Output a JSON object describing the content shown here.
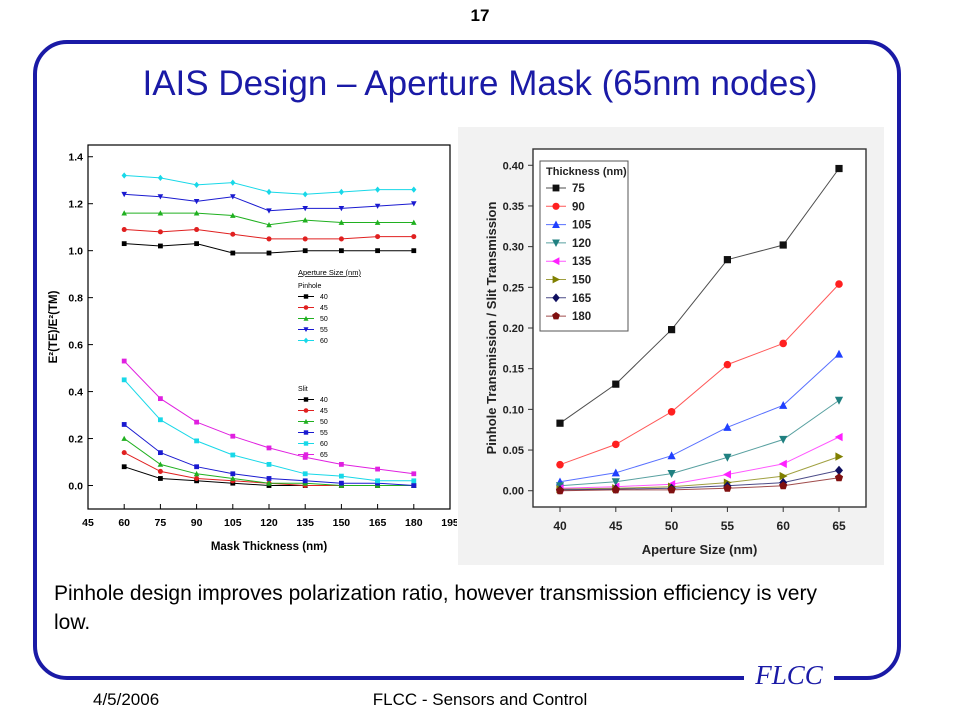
{
  "slide": {
    "number": "17",
    "title": "IAIS Design – Aperture Mask (65nm nodes)",
    "body": "Pinhole design improves polarization ratio, however transmission efficiency is very low.",
    "footer_date": "4/5/2006",
    "footer_center": "FLCC - Sensors and Control",
    "logo": "FLCC",
    "accent_color": "#1a1aa6"
  },
  "chart_data": [
    {
      "type": "line",
      "xlabel": "Mask Thickness (nm)",
      "ylabel": "E²(TE)/E²(TM)",
      "x": [
        60,
        75,
        90,
        105,
        120,
        135,
        150,
        165,
        180
      ],
      "xticks": [
        "45",
        "60",
        "75",
        "90",
        "105",
        "120",
        "135",
        "150",
        "165",
        "180",
        "195"
      ],
      "yticks": [
        "0.0",
        "0.2",
        "0.4",
        "0.6",
        "0.8",
        "1.0",
        "1.2",
        "1.4"
      ],
      "xlim": [
        45,
        195
      ],
      "ylim": [
        -0.1,
        1.45
      ],
      "legend_title": "Aperture Size (nm)",
      "legend_groups": [
        {
          "label": "Pinhole",
          "entries": [
            "40",
            "45",
            "50",
            "55",
            "60"
          ]
        },
        {
          "label": "Slit",
          "entries": [
            "40",
            "45",
            "50",
            "55",
            "60",
            "65"
          ]
        }
      ],
      "legend_position": "center-right",
      "series": [
        {
          "name": "40",
          "group": "Pinhole",
          "color": "#000000",
          "marker": "square",
          "values": [
            1.03,
            1.02,
            1.03,
            0.99,
            0.99,
            1.0,
            1.0,
            1.0,
            1.0
          ]
        },
        {
          "name": "45",
          "group": "Pinhole",
          "color": "#e02020",
          "marker": "circle",
          "values": [
            1.09,
            1.08,
            1.09,
            1.07,
            1.05,
            1.05,
            1.05,
            1.06,
            1.06
          ]
        },
        {
          "name": "50",
          "group": "Pinhole",
          "color": "#20b020",
          "marker": "triangle-up",
          "values": [
            1.16,
            1.16,
            1.16,
            1.15,
            1.11,
            1.13,
            1.12,
            1.12,
            1.12
          ]
        },
        {
          "name": "55",
          "group": "Pinhole",
          "color": "#1a1ad0",
          "marker": "triangle-down",
          "values": [
            1.24,
            1.23,
            1.21,
            1.23,
            1.17,
            1.18,
            1.18,
            1.19,
            1.2
          ]
        },
        {
          "name": "60",
          "group": "Pinhole",
          "color": "#18d8e8",
          "marker": "diamond",
          "values": [
            1.32,
            1.31,
            1.28,
            1.29,
            1.25,
            1.24,
            1.25,
            1.26,
            1.26
          ]
        },
        {
          "name": "40",
          "group": "Slit",
          "color": "#000000",
          "marker": "square",
          "values": [
            0.08,
            0.03,
            0.02,
            0.01,
            0.0,
            0.0,
            0.0,
            0.0,
            0.0
          ]
        },
        {
          "name": "45",
          "group": "Slit",
          "color": "#e02020",
          "marker": "circle",
          "values": [
            0.14,
            0.06,
            0.03,
            0.02,
            0.01,
            0.0,
            0.0,
            0.0,
            0.0
          ]
        },
        {
          "name": "50",
          "group": "Slit",
          "color": "#20b020",
          "marker": "triangle-up",
          "values": [
            0.2,
            0.09,
            0.05,
            0.03,
            0.01,
            0.01,
            0.0,
            0.0,
            0.0
          ]
        },
        {
          "name": "55",
          "group": "Slit",
          "color": "#1a1ad0",
          "marker": "square",
          "values": [
            0.26,
            0.14,
            0.08,
            0.05,
            0.03,
            0.02,
            0.01,
            0.01,
            0.0
          ]
        },
        {
          "name": "60",
          "group": "Slit",
          "color": "#18d8e8",
          "marker": "square",
          "values": [
            0.45,
            0.28,
            0.19,
            0.13,
            0.09,
            0.05,
            0.04,
            0.02,
            0.02
          ]
        },
        {
          "name": "65",
          "group": "Slit",
          "color": "#e020e0",
          "marker": "square",
          "values": [
            0.53,
            0.37,
            0.27,
            0.21,
            0.16,
            0.12,
            0.09,
            0.07,
            0.05
          ]
        }
      ]
    },
    {
      "type": "line",
      "xlabel": "Aperture Size (nm)",
      "ylabel": "Pinhole Transmission / Slit Transmission",
      "categories": [
        "40",
        "45",
        "50",
        "55",
        "60",
        "65"
      ],
      "yticks": [
        "0.00",
        "0.05",
        "0.10",
        "0.15",
        "0.20",
        "0.25",
        "0.30",
        "0.35",
        "0.40"
      ],
      "ylim": [
        -0.02,
        0.42
      ],
      "legend_title": "Thickness (nm)",
      "legend_position": "top-left",
      "series": [
        {
          "name": "75",
          "color": "#111111",
          "marker": "square",
          "values": [
            0.083,
            0.131,
            0.198,
            0.284,
            0.302,
            0.396
          ]
        },
        {
          "name": "90",
          "color": "#ff2020",
          "marker": "circle",
          "values": [
            0.032,
            0.057,
            0.097,
            0.155,
            0.181,
            0.254
          ]
        },
        {
          "name": "105",
          "color": "#2040ff",
          "marker": "triangle-up",
          "values": [
            0.011,
            0.022,
            0.043,
            0.078,
            0.105,
            0.168
          ]
        },
        {
          "name": "120",
          "color": "#208080",
          "marker": "triangle-down",
          "values": [
            0.006,
            0.011,
            0.021,
            0.041,
            0.063,
            0.111
          ]
        },
        {
          "name": "135",
          "color": "#ff20ff",
          "marker": "triangle-left",
          "values": [
            0.003,
            0.005,
            0.008,
            0.02,
            0.033,
            0.066
          ]
        },
        {
          "name": "150",
          "color": "#808000",
          "marker": "triangle-right",
          "values": [
            0.002,
            0.003,
            0.005,
            0.01,
            0.018,
            0.042
          ]
        },
        {
          "name": "165",
          "color": "#101060",
          "marker": "diamond",
          "values": [
            0.001,
            0.002,
            0.003,
            0.006,
            0.01,
            0.025
          ]
        },
        {
          "name": "180",
          "color": "#801010",
          "marker": "pentagon",
          "values": [
            0.0,
            0.001,
            0.001,
            0.003,
            0.006,
            0.016
          ]
        }
      ]
    }
  ]
}
